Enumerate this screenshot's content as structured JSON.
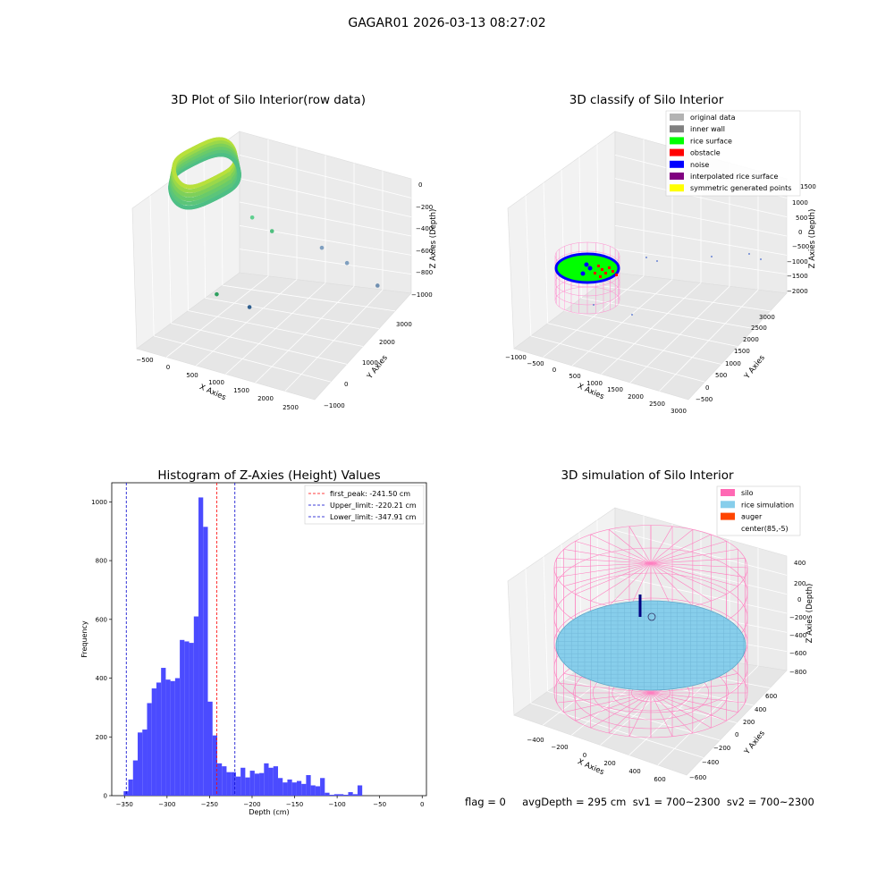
{
  "figure": {
    "suptitle": "GAGAR01 2026-03-13 08:27:02",
    "footer": "flag = 0     avgDepth = 295 cm  sv1 = 700~2300  sv2 = 700~2300",
    "colors": {
      "hist_bar": "#4b4bff",
      "first_peak": "#ff0000",
      "limit": "#0000cc",
      "original": "#b3b3b3",
      "inner_wall": "#808080",
      "rice_surface": "#00ff00",
      "obstacle": "#ff0000",
      "noise": "#0000ff",
      "interpolated": "#800080",
      "symmetric": "#ffff00",
      "silo": "#ff69b4",
      "rice_sim": "#87ceeb",
      "auger": "#ff4500"
    }
  },
  "chart_data": [
    {
      "type": "scatter",
      "title": "3D Plot of Silo Interior(row data)",
      "xlabel": "X Axies",
      "ylabel": "Y Axies",
      "zlabel": "Z Axies (Depth)",
      "x_ticks": [
        "−500",
        "0",
        "500",
        "1000",
        "1500",
        "2000",
        "2500"
      ],
      "y_ticks": [
        "−1000",
        "0",
        "1000",
        "2000",
        "3000"
      ],
      "z_ticks": [
        "0",
        "−200",
        "−400",
        "−600",
        "−800",
        "−1000"
      ],
      "outlier_points": [
        {
          "x": 1800,
          "y": 2600,
          "z": -820,
          "color": "#7f9fbf"
        },
        {
          "x": 2200,
          "y": 3000,
          "z": -1000,
          "color": "#6f8fb0"
        },
        {
          "x": 1500,
          "y": 2200,
          "z": -680,
          "color": "#7f9fc0"
        },
        {
          "x": 700,
          "y": 900,
          "z": -950,
          "color": "#2f5f8f"
        },
        {
          "x": 500,
          "y": 1500,
          "z": -460,
          "color": "#5fcf8f"
        },
        {
          "x": 700,
          "y": 1900,
          "z": -600,
          "color": "#4fbf7f"
        },
        {
          "x": 300,
          "y": 400,
          "z": -820,
          "color": "#2fa060"
        }
      ]
    },
    {
      "type": "scatter",
      "title": "3D classify of Silo Interior",
      "xlabel": "X Axies",
      "ylabel": "Y Axies",
      "zlabel": "Z Axies (Depth)",
      "x_ticks": [
        "−1000",
        "−500",
        "0",
        "500",
        "1000",
        "1500",
        "2000",
        "2500",
        "3000"
      ],
      "y_ticks": [
        "−500",
        "0",
        "500",
        "1000",
        "1500",
        "2000",
        "2500",
        "3000"
      ],
      "z_ticks": [
        "1000",
        "500",
        "0",
        "−500",
        "−1000",
        "−1500",
        "−2000"
      ],
      "z_top_tick": "1500",
      "legend": [
        "original data",
        "inner wall",
        "rice surface",
        "obstacle",
        "noise",
        "interpolated rice surface",
        "symmetric generated points"
      ],
      "legend_keys": [
        "original",
        "inner_wall",
        "rice_surface",
        "obstacle",
        "noise",
        "interpolated",
        "symmetric"
      ],
      "legend_loc": "upper right"
    },
    {
      "type": "bar",
      "title": "Histogram of Z-Axies (Height) Values",
      "xlabel": "Depth (cm)",
      "ylabel": "Frequency",
      "xlim": [
        -365,
        5
      ],
      "ylim": [
        0,
        1065
      ],
      "x_ticks": [
        -350,
        -300,
        -250,
        -200,
        -150,
        -100,
        -50,
        0
      ],
      "y_ticks": [
        0,
        200,
        400,
        600,
        800,
        1000
      ],
      "bin_start": -351,
      "bin_width": 5.5,
      "values": [
        15,
        55,
        120,
        215,
        225,
        315,
        365,
        385,
        435,
        395,
        390,
        400,
        530,
        525,
        520,
        610,
        1015,
        915,
        320,
        205,
        110,
        100,
        80,
        80,
        65,
        95,
        62,
        85,
        75,
        77,
        110,
        95,
        100,
        60,
        45,
        55,
        45,
        50,
        40,
        70,
        35,
        32,
        60,
        10,
        3,
        5,
        5,
        3,
        12,
        5,
        35
      ],
      "vlines": [
        {
          "x": -241.5,
          "style": "first_peak",
          "label": "first_peak: -241.50 cm"
        },
        {
          "x": -220.21,
          "style": "limit",
          "label": "Upper_limit: -220.21 cm"
        },
        {
          "x": -347.91,
          "style": "limit",
          "label": "Lower_limit: -347.91 cm"
        }
      ],
      "legend_loc": "upper right"
    },
    {
      "type": "scatter",
      "title": "3D simulation of Silo Interior",
      "xlabel": "X Axies",
      "ylabel": "Y Axies",
      "zlabel": "Z Axies (Depth)",
      "x_ticks": [
        "−400",
        "−200",
        "0",
        "200",
        "400",
        "600"
      ],
      "y_ticks": [
        "−600",
        "−400",
        "−200",
        "0",
        "200",
        "400",
        "600"
      ],
      "z_ticks": [
        "400",
        "200",
        "0",
        "−200",
        "−400",
        "−600",
        "−800"
      ],
      "legend": [
        "silo",
        "rice simulation",
        "auger",
        "center(85,-5)"
      ],
      "legend_keys": [
        "silo",
        "rice_sim",
        "auger",
        ""
      ],
      "legend_loc": "upper right"
    }
  ]
}
